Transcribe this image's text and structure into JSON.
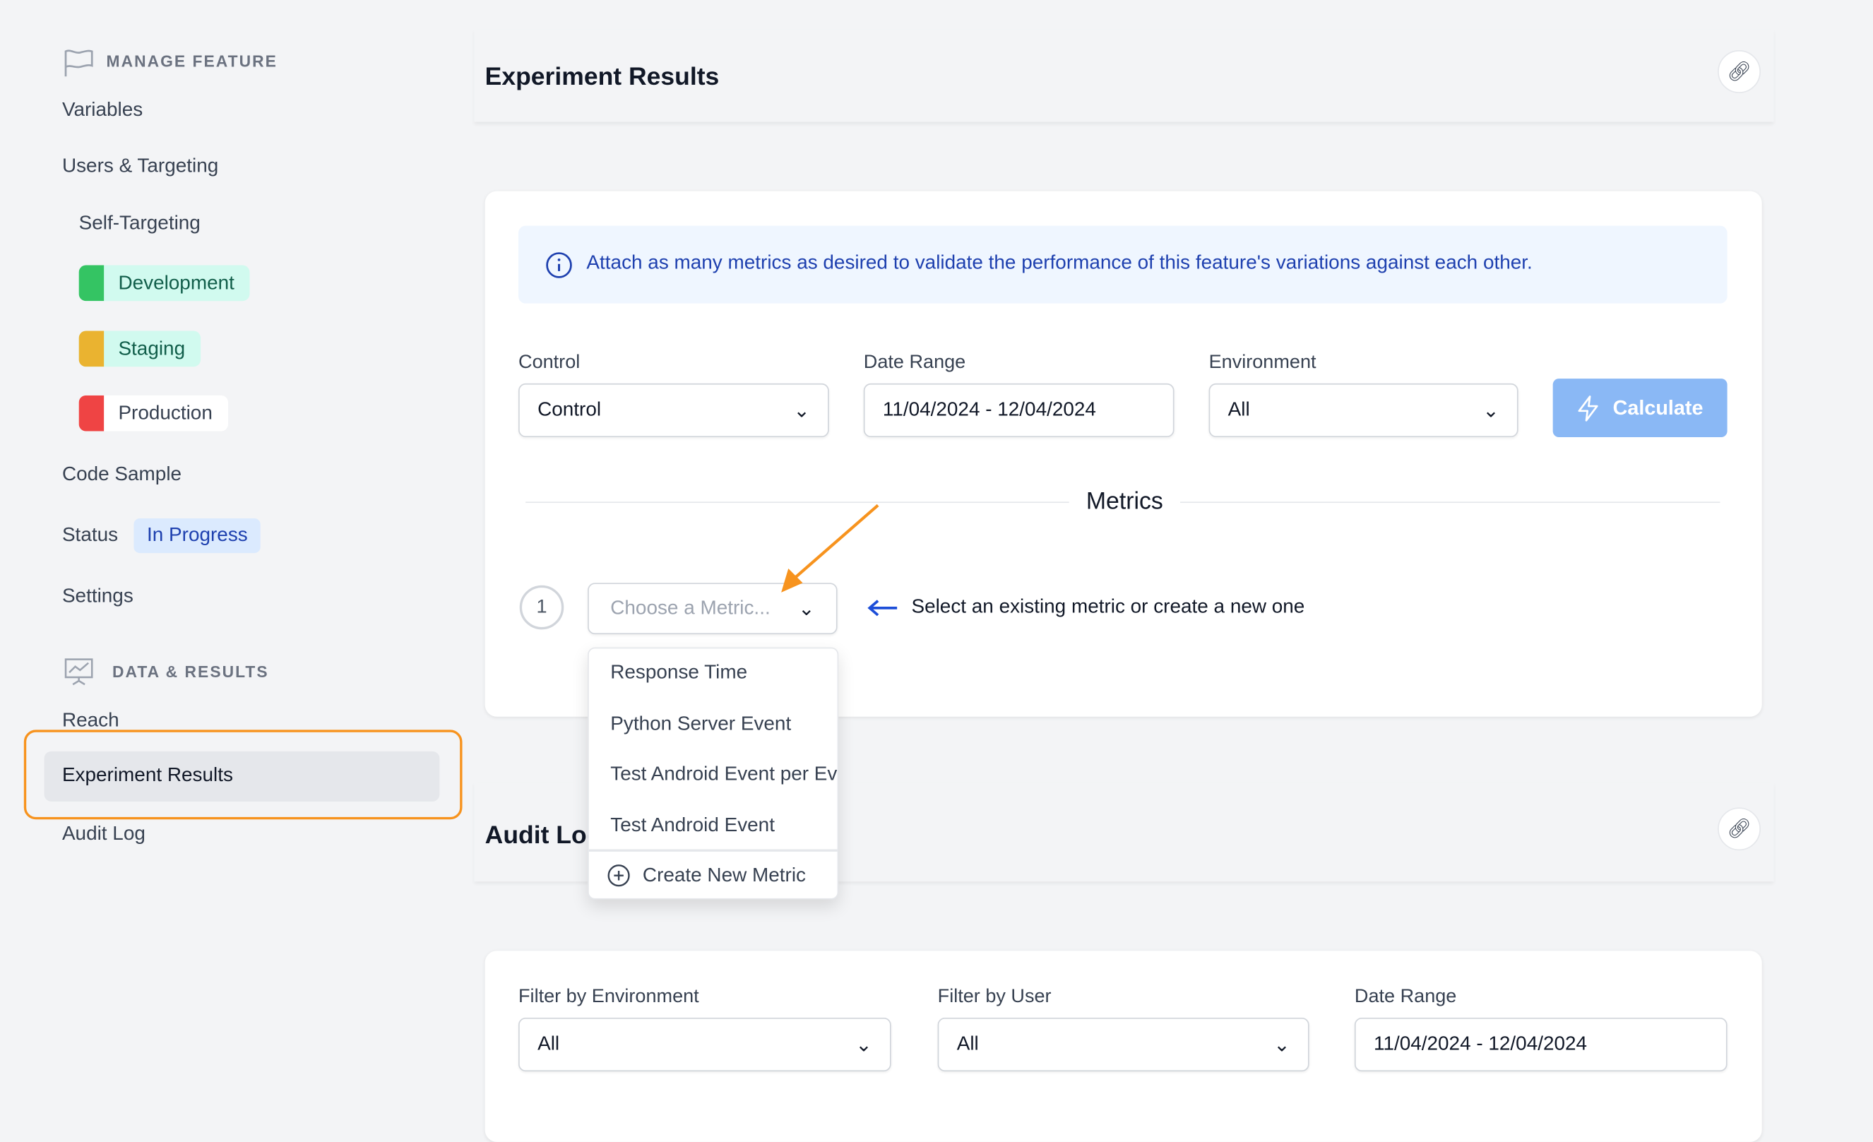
{
  "sidebar": {
    "manage_section": "MANAGE FEATURE",
    "variables": "Variables",
    "users_targeting": "Users & Targeting",
    "self_targeting": "Self-Targeting",
    "environments": [
      {
        "label": "Development",
        "color": "#34c463",
        "bg": "#d1faef",
        "text": "#115e4a"
      },
      {
        "label": "Staging",
        "color": "#eab330",
        "bg": "#d1faef",
        "text": "#115e4a"
      },
      {
        "label": "Production",
        "color": "#ef4444",
        "bg": "#ffffff",
        "text": "#374151"
      }
    ],
    "code_sample": "Code Sample",
    "status_label": "Status",
    "status_value": "In Progress",
    "settings": "Settings",
    "data_section": "DATA & RESULTS",
    "reach": "Reach",
    "experiment_results": "Experiment Results",
    "audit_log": "Audit Log"
  },
  "experiment": {
    "title": "Experiment Results",
    "info": "Attach as many metrics as desired to validate the performance of this feature's variations against each other.",
    "control_label": "Control",
    "control_value": "Control",
    "date_label": "Date Range",
    "date_value": "11/04/2024 - 12/04/2024",
    "env_label": "Environment",
    "env_value": "All",
    "calculate": "Calculate",
    "metrics_title": "Metrics",
    "metric_index": "1",
    "metric_placeholder": "Choose a Metric...",
    "hint": "Select an existing metric or create a new one",
    "options": [
      "Response Time",
      "Python Server Event",
      "Test Android Event per Event",
      "Test Android Event"
    ],
    "create_new": "Create New Metric"
  },
  "audit": {
    "title": "Audit Log",
    "env_label": "Filter by Environment",
    "env_value": "All",
    "user_label": "Filter by User",
    "user_value": "All",
    "date_label": "Date Range",
    "date_value": "11/04/2024 - 12/04/2024"
  },
  "colors": {
    "accent": "#1e40af",
    "highlight": "#f7931e",
    "calculate": "#8ab8f5"
  }
}
